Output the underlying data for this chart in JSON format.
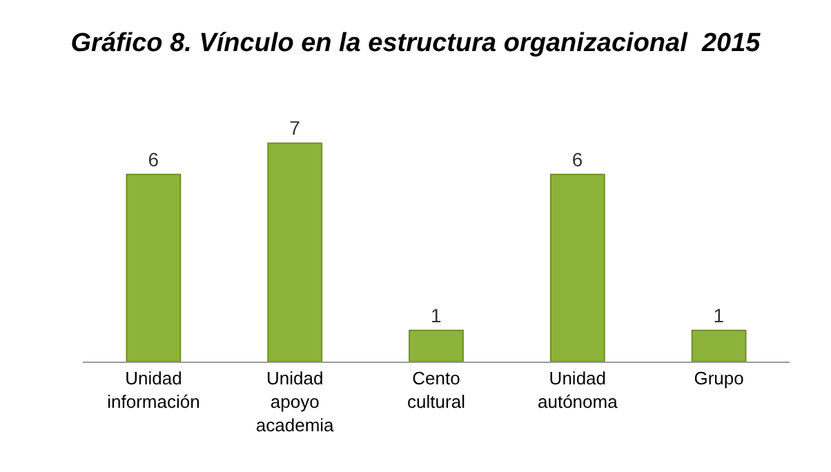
{
  "chart_data": {
    "type": "bar",
    "title": "Gráfico 8. Vínculo en la estructura organizacional  2015",
    "categories": [
      "Unidad información",
      "Unidad apoyo academia",
      "Cento cultural",
      "Unidad autónoma",
      "Grupo"
    ],
    "values": [
      6,
      7,
      1,
      6,
      1
    ],
    "color": "#8db33a",
    "data_labels": true
  }
}
